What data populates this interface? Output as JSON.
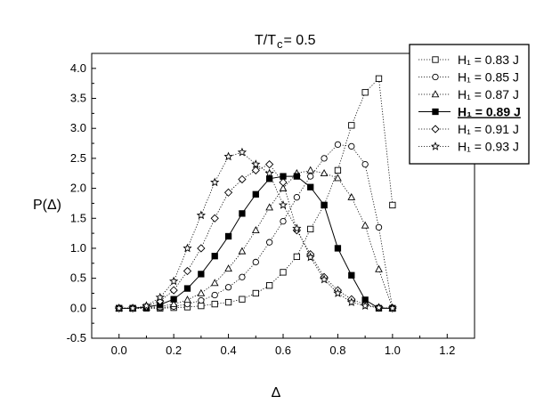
{
  "chart_data": {
    "type": "line",
    "title": "T/T",
    "title_sub": "c",
    "title_rest": " = 0.5",
    "xlabel": "Δ",
    "ylabel": "P(Δ)",
    "xlim": [
      -0.1,
      1.3
    ],
    "ylim": [
      -0.5,
      4.25
    ],
    "xticks": [
      "0.0",
      "0.2",
      "0.4",
      "0.6",
      "0.8",
      "1.0",
      "1.2"
    ],
    "yticks": [
      "-0.5",
      "0.0",
      "0.5",
      "1.0",
      "1.5",
      "2.0",
      "2.5",
      "3.0",
      "3.5",
      "4.0"
    ],
    "legend_position": "top-right",
    "series": [
      {
        "name": "H₁ = 0.83 J",
        "marker": "open-square",
        "line": "dotted",
        "x": [
          0.0,
          0.05,
          0.1,
          0.15,
          0.2,
          0.25,
          0.3,
          0.35,
          0.4,
          0.45,
          0.5,
          0.55,
          0.6,
          0.65,
          0.7,
          0.75,
          0.8,
          0.85,
          0.9,
          0.95,
          1.0
        ],
        "y": [
          0.0,
          0.0,
          0.0,
          0.0,
          0.01,
          0.02,
          0.04,
          0.07,
          0.1,
          0.15,
          0.25,
          0.38,
          0.6,
          0.86,
          1.32,
          1.72,
          2.3,
          3.05,
          3.6,
          3.83,
          1.72
        ]
      },
      {
        "name": "H₁ = 0.85 J",
        "marker": "open-circle",
        "line": "dotted",
        "x": [
          0.0,
          0.05,
          0.1,
          0.15,
          0.2,
          0.25,
          0.3,
          0.35,
          0.4,
          0.45,
          0.5,
          0.55,
          0.6,
          0.65,
          0.7,
          0.75,
          0.8,
          0.85,
          0.9,
          0.95,
          1.0
        ],
        "y": [
          0.0,
          0.0,
          0.0,
          0.01,
          0.03,
          0.07,
          0.13,
          0.22,
          0.35,
          0.52,
          0.77,
          1.1,
          1.45,
          1.85,
          2.2,
          2.5,
          2.73,
          2.7,
          2.4,
          1.35,
          0.0
        ]
      },
      {
        "name": "H₁ = 0.87 J",
        "marker": "open-triangle",
        "line": "dotted",
        "x": [
          0.0,
          0.05,
          0.1,
          0.15,
          0.2,
          0.25,
          0.3,
          0.35,
          0.4,
          0.45,
          0.5,
          0.55,
          0.6,
          0.65,
          0.7,
          0.75,
          0.8,
          0.85,
          0.9,
          0.95,
          1.0
        ],
        "y": [
          0.0,
          0.0,
          0.01,
          0.03,
          0.07,
          0.14,
          0.25,
          0.42,
          0.66,
          0.95,
          1.3,
          1.68,
          2.0,
          2.25,
          2.3,
          2.25,
          2.17,
          1.85,
          1.38,
          0.65,
          0.0
        ]
      },
      {
        "name": "H₁ = 0.89 J",
        "marker": "filled-square",
        "line": "solid",
        "bold": true,
        "x": [
          0.0,
          0.05,
          0.1,
          0.15,
          0.2,
          0.25,
          0.3,
          0.35,
          0.4,
          0.45,
          0.5,
          0.55,
          0.6,
          0.65,
          0.7,
          0.75,
          0.8,
          0.85,
          0.9,
          0.95,
          1.0
        ],
        "y": [
          0.0,
          0.0,
          0.02,
          0.06,
          0.15,
          0.33,
          0.57,
          0.87,
          1.2,
          1.58,
          1.9,
          2.16,
          2.2,
          2.2,
          2.02,
          1.72,
          1.0,
          0.55,
          0.14,
          0.0,
          0.0
        ]
      },
      {
        "name": "H₁ = 0.91 J",
        "marker": "open-diamond",
        "line": "dotted",
        "x": [
          0.0,
          0.05,
          0.1,
          0.15,
          0.2,
          0.25,
          0.3,
          0.35,
          0.4,
          0.45,
          0.5,
          0.55,
          0.6,
          0.65,
          0.7,
          0.75,
          0.8,
          0.85,
          0.9,
          0.95,
          1.0
        ],
        "y": [
          0.0,
          0.0,
          0.03,
          0.12,
          0.3,
          0.62,
          1.0,
          1.5,
          1.93,
          2.15,
          2.3,
          2.4,
          2.1,
          1.3,
          0.9,
          0.52,
          0.3,
          0.15,
          0.06,
          0.01,
          0.0
        ]
      },
      {
        "name": "H₁ = 0.93 J",
        "marker": "open-star",
        "line": "dotted",
        "x": [
          0.0,
          0.05,
          0.1,
          0.15,
          0.2,
          0.25,
          0.3,
          0.35,
          0.4,
          0.45,
          0.5,
          0.55,
          0.6,
          0.65,
          0.7,
          0.75,
          0.8,
          0.85,
          0.9,
          0.95,
          1.0
        ],
        "y": [
          0.0,
          0.0,
          0.04,
          0.18,
          0.45,
          1.0,
          1.55,
          2.1,
          2.53,
          2.6,
          2.4,
          2.25,
          1.72,
          1.33,
          0.85,
          0.48,
          0.25,
          0.1,
          0.04,
          0.01,
          0.0
        ]
      }
    ]
  }
}
